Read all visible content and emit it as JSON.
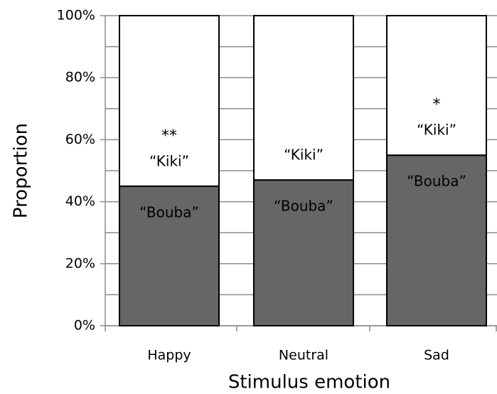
{
  "chart_data": {
    "type": "stacked_bar",
    "xlabel": "Stimulus emotion",
    "ylabel": "Proportion",
    "categories": [
      "Happy",
      "Neutral",
      "Sad"
    ],
    "series": [
      {
        "name": "“Bouba”",
        "color": "#666666",
        "values": [
          45,
          47,
          55
        ]
      },
      {
        "name": "“Kiki”",
        "color": "#ffffff",
        "values": [
          55,
          53,
          45
        ]
      }
    ],
    "ylim": [
      0,
      100
    ],
    "yticks": [
      {
        "value": 0,
        "label": "0%"
      },
      {
        "value": 20,
        "label": "20%"
      },
      {
        "value": 40,
        "label": "40%"
      },
      {
        "value": 60,
        "label": "60%"
      },
      {
        "value": 80,
        "label": "80%"
      },
      {
        "value": 100,
        "label": "100%"
      }
    ],
    "minor_yticks": [
      10,
      30,
      50,
      70,
      90
    ],
    "grid": true,
    "annotations": [
      {
        "category": "Happy",
        "text": "**"
      },
      {
        "category": "Sad",
        "text": "*"
      }
    ]
  }
}
